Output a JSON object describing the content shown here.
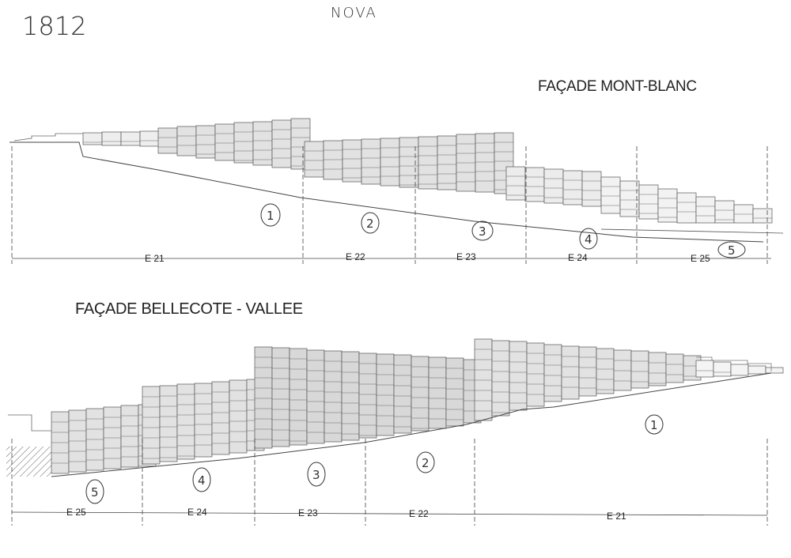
{
  "header": {
    "handwritten_number": "1812",
    "handwritten_name": "NOVA"
  },
  "facade_top": {
    "title": "FAÇADE MONT-BLANC",
    "sections": [
      "E 21",
      "E 22",
      "E 23",
      "E 24",
      "E 25"
    ],
    "zone_marks": [
      "1",
      "2",
      "3",
      "4",
      "5"
    ]
  },
  "facade_bottom": {
    "title": "FAÇADE BELLECOTE - VALLEE",
    "sections": [
      "E 25",
      "E 24",
      "E 23",
      "E 22",
      "E 21"
    ],
    "zone_marks": [
      "5",
      "4",
      "3",
      "2",
      "1"
    ]
  },
  "colors": {
    "ink": "#333333",
    "unit_fill": "#e3e3e3",
    "paper": "#ffffff"
  }
}
